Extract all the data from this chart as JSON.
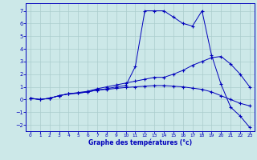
{
  "xlabel": "Graphe des températures (°c)",
  "background_color": "#cce8e8",
  "grid_color": "#aacccc",
  "line_color": "#0000bb",
  "x_ticks": [
    0,
    1,
    2,
    3,
    4,
    5,
    6,
    7,
    8,
    9,
    10,
    11,
    12,
    13,
    14,
    15,
    16,
    17,
    18,
    19,
    20,
    21,
    22,
    23
  ],
  "y_ticks": [
    -2,
    -1,
    0,
    1,
    2,
    3,
    4,
    5,
    6,
    7
  ],
  "line1_y": [
    0.1,
    0.0,
    0.1,
    0.3,
    0.45,
    0.5,
    0.6,
    0.75,
    0.85,
    1.0,
    1.1,
    2.6,
    7.0,
    7.0,
    7.0,
    6.5,
    6.0,
    5.8,
    7.0,
    3.5,
    1.2,
    -0.6,
    -1.3,
    -2.2
  ],
  "line2_y": [
    0.1,
    0.0,
    0.1,
    0.3,
    0.45,
    0.55,
    0.65,
    0.85,
    1.0,
    1.15,
    1.3,
    1.45,
    1.6,
    1.75,
    1.75,
    2.0,
    2.3,
    2.7,
    3.0,
    3.3,
    3.4,
    2.8,
    2.0,
    1.0
  ],
  "line3_y": [
    0.1,
    0.0,
    0.1,
    0.3,
    0.45,
    0.5,
    0.6,
    0.75,
    0.8,
    0.88,
    0.95,
    1.0,
    1.05,
    1.1,
    1.1,
    1.05,
    1.0,
    0.9,
    0.8,
    0.6,
    0.3,
    0.0,
    -0.3,
    -0.5
  ]
}
